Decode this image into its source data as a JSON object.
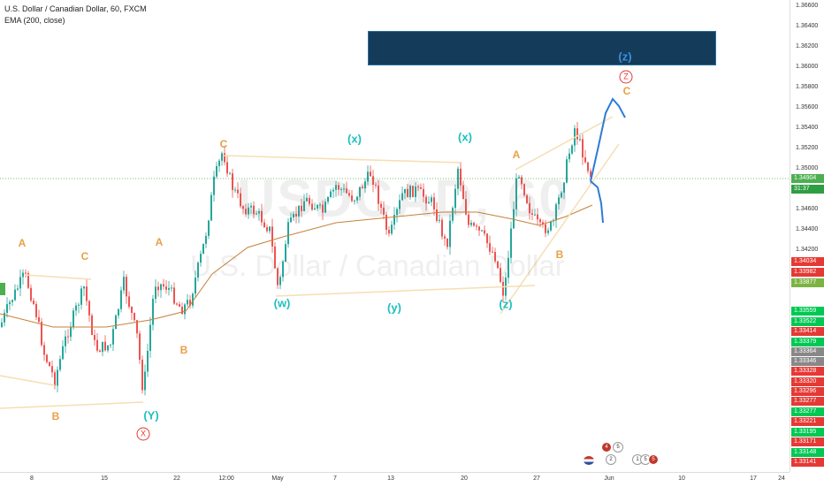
{
  "legend": {
    "symbol_line": "U.S. Dollar / Canadian Dollar, 60, FXCM",
    "indicator_line": "EMA (200, close)"
  },
  "watermark": {
    "ticker": "USDCAD, 60",
    "name": "U.S. Dollar / Canadian Dollar"
  },
  "price_axis": {
    "ticks": [
      "1.36600",
      "1.36400",
      "1.36200",
      "1.36000",
      "1.35800",
      "1.35600",
      "1.35400",
      "1.35200",
      "1.35000",
      "1.34800",
      "1.34600",
      "1.34400",
      "1.34200"
    ],
    "current_price": "1.34904",
    "countdown": "31:37",
    "badges": [
      "1.34034",
      "1.33982",
      "1.33877",
      "1.33559",
      "1.33522",
      "1.33414",
      "1.33379",
      "1.33364",
      "1.33346",
      "1.33328",
      "1.33320",
      "1.33296",
      "1.33277",
      "1.33277",
      "1.33221",
      "1.33195",
      "1.33171",
      "1.33148",
      "1.33141"
    ],
    "badge_colors": [
      "#e53935",
      "#e53935",
      "#7cb342",
      "#00c853",
      "#00c853",
      "#e53935",
      "#00c853",
      "#888888",
      "#888888",
      "#e53935",
      "#e53935",
      "#e53935",
      "#e53935",
      "#00c853",
      "#e53935",
      "#00c853",
      "#e53935",
      "#00c853",
      "#e53935"
    ]
  },
  "time_axis": {
    "labels": [
      "8",
      "15",
      "22",
      "12:00",
      "May",
      "7",
      "13",
      "20",
      "27",
      "Jun",
      "10",
      "17",
      "24"
    ]
  },
  "wave_labels": {
    "A1": "A",
    "C1": "C",
    "B1": "B",
    "Y": "(Y)",
    "X": "X",
    "A2": "A",
    "B2": "B",
    "C2": "C",
    "w": "(w)",
    "x1": "(x)",
    "y": "(y)",
    "x2": "(x)",
    "z": "(z)",
    "A3": "A",
    "B3": "B",
    "C3": "C",
    "Zcirc": "Z",
    "zblue": "(z)"
  },
  "events": [
    "4",
    "5",
    "2",
    "1",
    "5",
    "5"
  ],
  "colors": {
    "up": "#26a69a",
    "down": "#ef5350",
    "ema": "#c6803a",
    "trend": "#f5deb3",
    "current": "#4caf50",
    "projection": "#2e7bd6"
  }
}
